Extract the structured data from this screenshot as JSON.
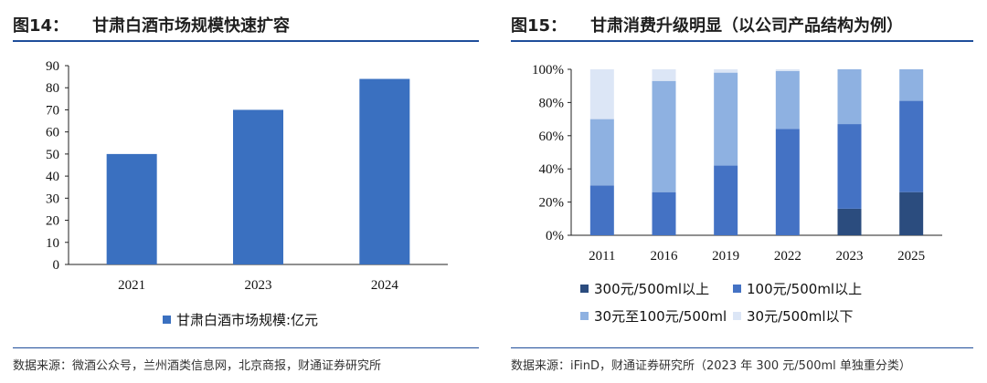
{
  "colors": {
    "accent": "#1f4e9a",
    "bar": "#3a70c0"
  },
  "left": {
    "fig_num": "图14：",
    "fig_title": "甘肃白酒市场规模快速扩容",
    "source": "数据来源：微酒公众号，兰州酒类信息网，北京商报，财通证券研究所",
    "chart_data": {
      "type": "bar",
      "categories": [
        "2021",
        "2023",
        "2024"
      ],
      "series": [
        {
          "name": "甘肃白酒市场规模:亿元",
          "values": [
            50,
            70,
            84
          ],
          "color": "#3a70c0"
        }
      ],
      "ylim": [
        0,
        90
      ],
      "yticks": [
        0,
        10,
        20,
        30,
        40,
        50,
        60,
        70,
        80,
        90
      ],
      "grid": false,
      "legend": "bottom"
    }
  },
  "right": {
    "fig_num": "图15：",
    "fig_title": "甘肃消费升级明显（以公司产品结构为例）",
    "source": "数据来源：iFinD，财通证券研究所（2023 年 300 元/500ml 单独重分类）",
    "chart_data": {
      "type": "bar",
      "stacked": true,
      "categories": [
        "2011",
        "2016",
        "2019",
        "2022",
        "2023",
        "2025"
      ],
      "series": [
        {
          "name": "300元/500ml以上",
          "values": [
            0,
            0,
            0,
            0,
            16,
            26
          ],
          "color": "#2b4c7e"
        },
        {
          "name": "100元/500ml以上",
          "values": [
            30,
            26,
            42,
            64,
            51,
            55
          ],
          "color": "#4472c4"
        },
        {
          "name": "30元至100元/500ml",
          "values": [
            40,
            67,
            56,
            35,
            33,
            19
          ],
          "color": "#8eb1e1"
        },
        {
          "name": "30元/500ml以下",
          "values": [
            30,
            7,
            2,
            1,
            0,
            0
          ],
          "color": "#dce6f6"
        }
      ],
      "ylim": [
        0,
        100
      ],
      "yticks": [
        "0%",
        "20%",
        "40%",
        "60%",
        "80%",
        "100%"
      ],
      "grid": false,
      "legend": "bottom"
    }
  }
}
